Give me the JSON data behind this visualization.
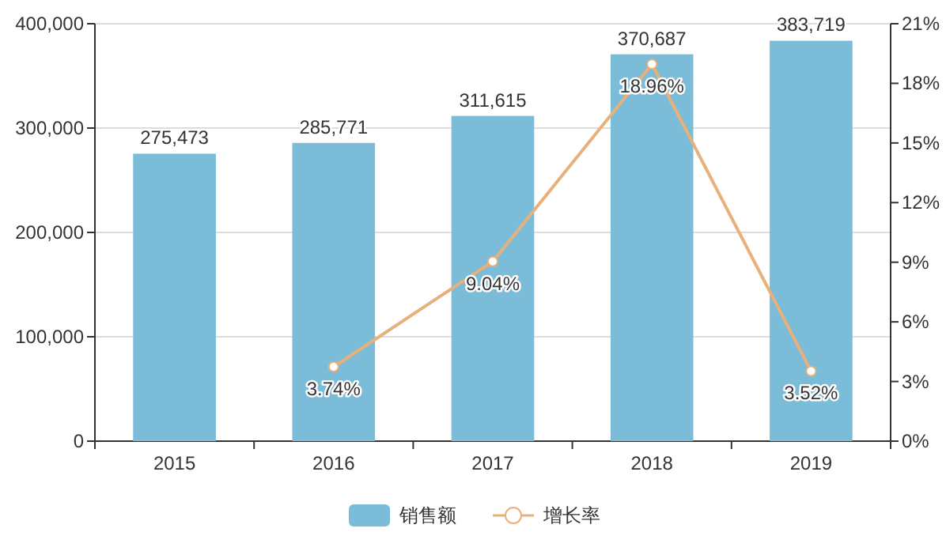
{
  "chart_data": {
    "type": "bar",
    "categories": [
      "2015",
      "2016",
      "2017",
      "2018",
      "2019"
    ],
    "series": [
      {
        "name": "销售额",
        "color": "#7bbcd9",
        "values": [
          275473,
          285771,
          311615,
          370687,
          383719
        ],
        "value_labels": [
          "275,473",
          "285,771",
          "311,615",
          "370,687",
          "383,719"
        ]
      },
      {
        "name": "增长率",
        "type": "line",
        "axis": "y2",
        "color": "#e8b07a",
        "marker": "circle",
        "values": [
          null,
          3.74,
          9.04,
          18.96,
          3.52
        ],
        "value_labels": [
          null,
          "3.74%",
          "9.04%",
          "18.96%",
          "3.52%"
        ]
      }
    ],
    "ylim": [
      0,
      400000
    ],
    "yticks": [
      {
        "value": 0,
        "label": "0"
      },
      {
        "value": 100000,
        "label": "100,000"
      },
      {
        "value": 200000,
        "label": "200,000"
      },
      {
        "value": 300000,
        "label": "300,000"
      },
      {
        "value": 400000,
        "label": "400,000"
      }
    ],
    "y2lim": [
      0,
      21
    ],
    "y2ticks": [
      {
        "value": 0,
        "label": "0%"
      },
      {
        "value": 3,
        "label": "3%"
      },
      {
        "value": 6,
        "label": "6%"
      },
      {
        "value": 9,
        "label": "9%"
      },
      {
        "value": 12,
        "label": "12%"
      },
      {
        "value": 15,
        "label": "15%"
      },
      {
        "value": 18,
        "label": "18%"
      },
      {
        "value": 21,
        "label": "21%"
      }
    ],
    "grid": "y",
    "legend": "bottom"
  }
}
